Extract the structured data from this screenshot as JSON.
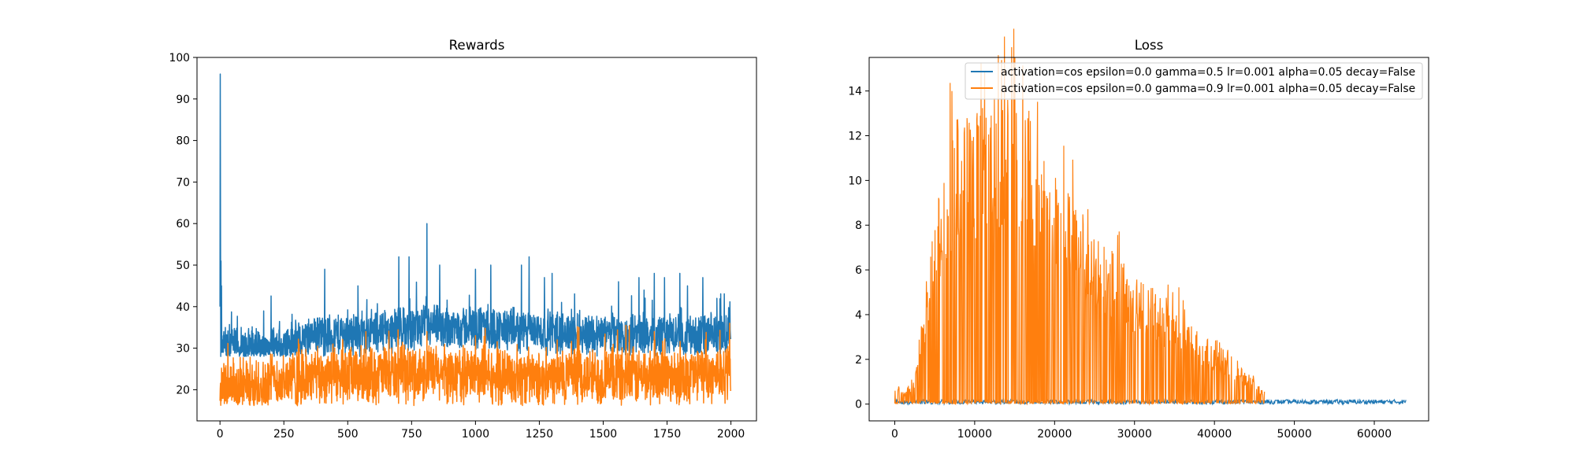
{
  "chart_data": [
    {
      "type": "line",
      "title": "Rewards",
      "xlabel": "",
      "ylabel": "",
      "xlim": [
        -90,
        2100
      ],
      "ylim": [
        12.5,
        100
      ],
      "xticks": [
        "0",
        "250",
        "500",
        "750",
        "1000",
        "1250",
        "1500",
        "1750",
        "2000"
      ],
      "yticks": [
        "20",
        "30",
        "40",
        "50",
        "60",
        "70",
        "80",
        "90",
        "100"
      ],
      "grid": false,
      "n_points": 2000,
      "series": [
        {
          "color": "#1f77b4",
          "values": [
            40,
            96,
            61,
            28,
            51,
            30,
            45,
            29,
            33,
            29,
            30,
            31,
            32,
            29,
            33,
            34,
            31,
            32,
            30,
            33
          ],
          "baseline": 28,
          "profile": [
            [
              0,
              40
            ],
            [
              5,
              96
            ],
            [
              10,
              61
            ],
            [
              20,
              30
            ],
            [
              200,
              30
            ],
            [
              400,
              33
            ],
            [
              600,
              34
            ],
            [
              800,
              35
            ],
            [
              1000,
              35
            ],
            [
              1200,
              34
            ],
            [
              1600,
              33
            ],
            [
              1995,
              33
            ]
          ],
          "amplitude": 3,
          "peaks": [
            [
              410,
              49
            ],
            [
              540,
              45
            ],
            [
              700,
              52
            ],
            [
              740,
              52
            ],
            [
              810,
              60
            ],
            [
              860,
              50
            ],
            [
              1000,
              49
            ],
            [
              1060,
              50
            ],
            [
              1180,
              50
            ],
            [
              1210,
              52
            ],
            [
              1270,
              47
            ],
            [
              1300,
              48
            ],
            [
              1560,
              46
            ],
            [
              1640,
              47
            ],
            [
              1700,
              48
            ],
            [
              1740,
              47
            ],
            [
              1800,
              48
            ],
            [
              1830,
              45
            ],
            [
              1890,
              47
            ]
          ]
        },
        {
          "color": "#ff7f0e",
          "baseline": 16,
          "profile": [
            [
              0,
              20
            ],
            [
              200,
              22
            ],
            [
              400,
              23
            ],
            [
              800,
              24
            ],
            [
              1200,
              23
            ],
            [
              1600,
              23
            ],
            [
              2000,
              24
            ]
          ],
          "amplitude": 4,
          "peaks": [
            [
              310,
              31
            ],
            [
              810,
              34
            ],
            [
              1000,
              33
            ],
            [
              1320,
              32
            ],
            [
              1700,
              34
            ],
            [
              1900,
              32
            ],
            [
              1995,
              36
            ]
          ]
        }
      ]
    },
    {
      "type": "line",
      "title": "Loss",
      "xlabel": "",
      "ylabel": "",
      "xlim": [
        -3200,
        66800
      ],
      "ylim": [
        -0.75,
        15.5
      ],
      "xticks": [
        "0",
        "10000",
        "20000",
        "30000",
        "40000",
        "50000",
        "60000"
      ],
      "yticks": [
        "0",
        "2",
        "4",
        "6",
        "8",
        "10",
        "12",
        "14"
      ],
      "grid": false,
      "legend": {
        "position": "top-right",
        "entries": [
          "activation=cos epsilon=0.0 gamma=0.5 lr=0.001 alpha=0.05 decay=False",
          "activation=cos epsilon=0.0 gamma=0.9 lr=0.001 alpha=0.05 decay=False"
        ]
      },
      "series": [
        {
          "color": "#1f77b4",
          "x_end": 64000,
          "band": [
            0,
            0.2
          ]
        },
        {
          "color": "#ff7f0e",
          "x_end": 46300,
          "envelope": [
            [
              0,
              0.9
            ],
            [
              1500,
              0.6
            ],
            [
              2500,
              1.2
            ],
            [
              4000,
              5
            ],
            [
              5000,
              8.5
            ],
            [
              6000,
              11
            ],
            [
              7000,
              12.2
            ],
            [
              8000,
              13.1
            ],
            [
              10000,
              13.2
            ],
            [
              12000,
              13.6
            ],
            [
              13500,
              14.2
            ],
            [
              15000,
              14.0
            ],
            [
              16500,
              13.6
            ],
            [
              18000,
              12.0
            ],
            [
              20000,
              10.5
            ],
            [
              22000,
              9.5
            ],
            [
              24000,
              8.2
            ],
            [
              26000,
              7.3
            ],
            [
              28000,
              6.6
            ],
            [
              30000,
              5.7
            ],
            [
              32000,
              5.3
            ],
            [
              34000,
              4.5
            ],
            [
              36000,
              4.4
            ],
            [
              38000,
              3.3
            ],
            [
              40000,
              2.6
            ],
            [
              42000,
              2.0
            ],
            [
              44000,
              1.5
            ],
            [
              46300,
              0.6
            ]
          ]
        }
      ]
    }
  ]
}
